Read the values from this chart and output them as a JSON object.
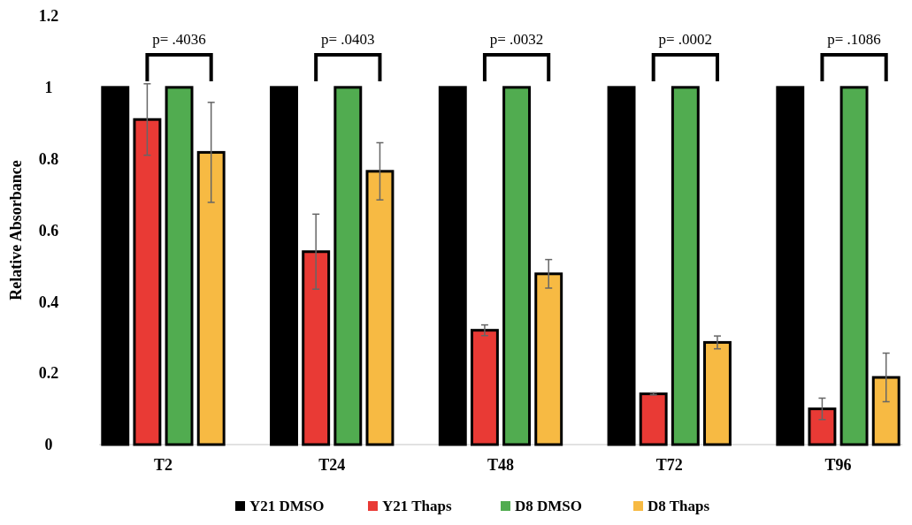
{
  "chart_data": {
    "type": "bar",
    "ylabel": "Relative Absorbance",
    "categories": [
      "T2",
      "T24",
      "T48",
      "T72",
      "T96"
    ],
    "series": [
      {
        "name": "Y21 DMSO",
        "color": "#000000",
        "values": [
          1,
          1,
          1,
          1,
          1
        ]
      },
      {
        "name": "Y21 Thaps",
        "color": "#e93a35",
        "values": [
          0.91,
          0.54,
          0.32,
          0.142,
          0.1
        ],
        "errors": [
          0.1,
          0.105,
          0.015,
          0.003,
          0.03
        ]
      },
      {
        "name": "D8 DMSO",
        "color": "#51ac50",
        "values": [
          1,
          1,
          1,
          1,
          1
        ]
      },
      {
        "name": "D8 Thaps",
        "color": "#f7ba43",
        "values": [
          0.818,
          0.765,
          0.478,
          0.286,
          0.188
        ],
        "errors": [
          0.14,
          0.08,
          0.04,
          0.018,
          0.068
        ]
      }
    ],
    "ylim": [
      0,
      1.2
    ],
    "yticks": [
      0,
      0.2,
      0.4,
      0.6,
      0.8,
      1,
      1.2
    ],
    "grid": false,
    "legend": "bottom",
    "annotations": [
      "p= .4036",
      "p= .0403",
      "p= .0032",
      "p= .0002",
      "p= .1086"
    ]
  }
}
